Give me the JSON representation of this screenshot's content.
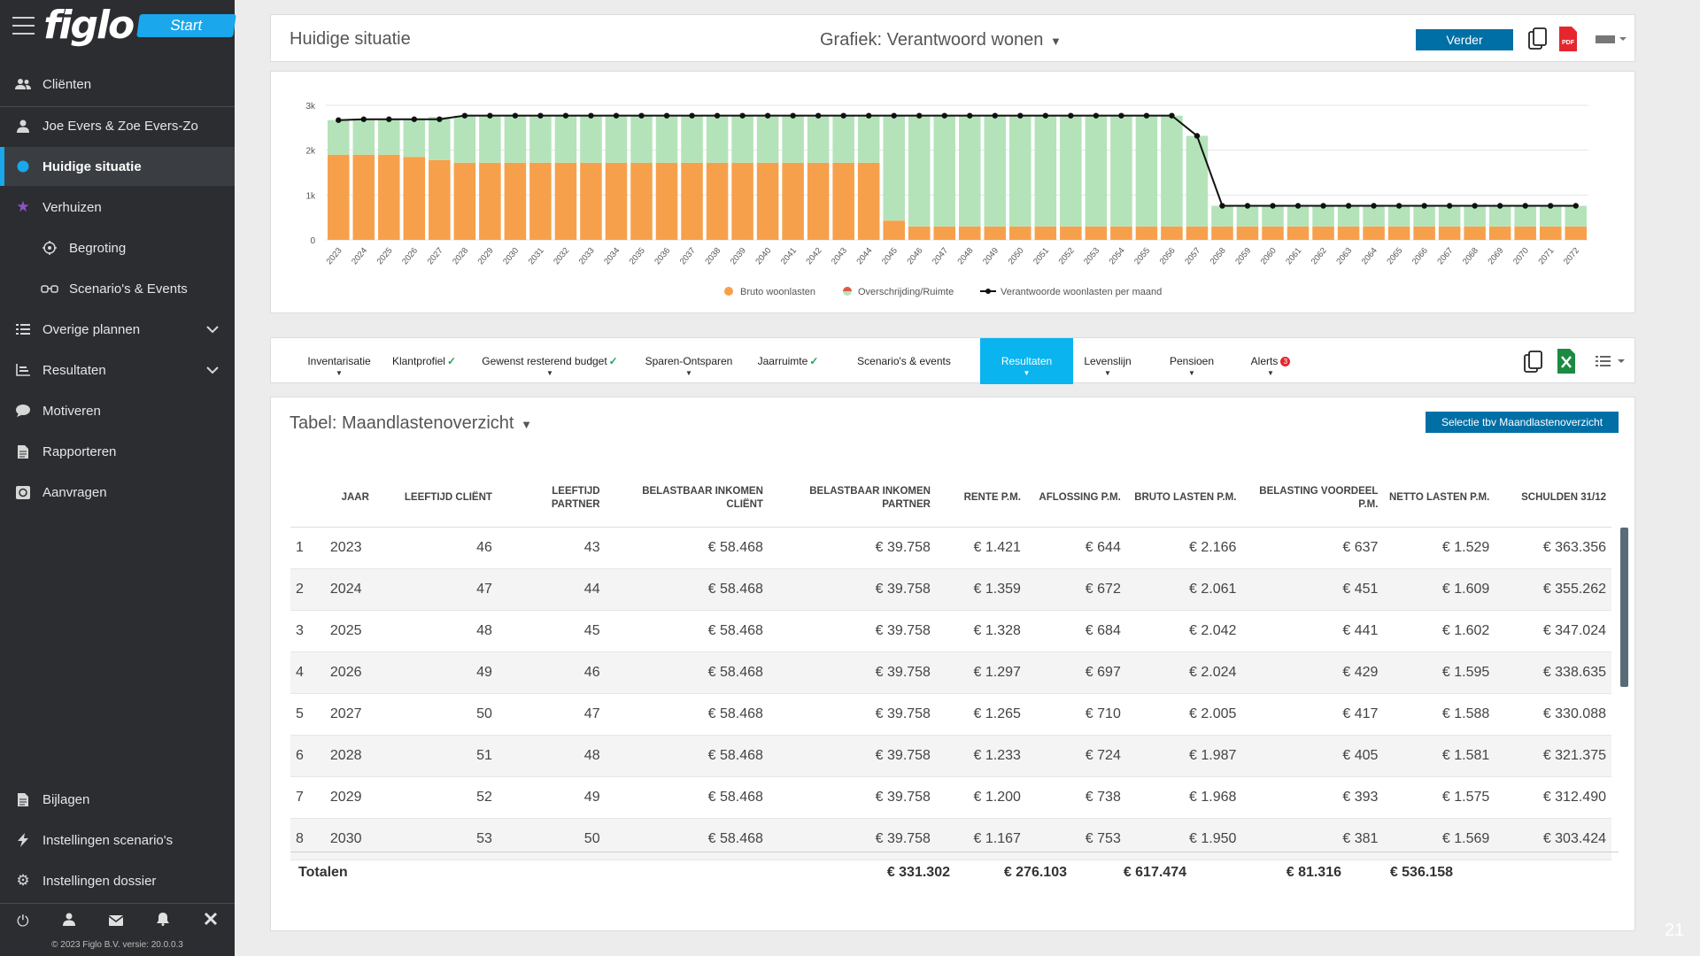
{
  "sidebar": {
    "logo": "figlo",
    "start_label": "Start",
    "items": [
      {
        "label": "Cliënten",
        "icon": "users-icon"
      },
      {
        "label": "Joe Evers & Zoe Evers-Zo",
        "icon": "user-icon"
      },
      {
        "label": "Huidige situatie",
        "icon": "circle-icon"
      },
      {
        "label": "Verhuizen",
        "icon": "star-icon"
      },
      {
        "label": "Begroting",
        "icon": "target-icon"
      },
      {
        "label": "Scenario's & Events",
        "icon": "glasses-icon"
      },
      {
        "label": "Overige plannen",
        "icon": "list-icon"
      },
      {
        "label": "Resultaten",
        "icon": "chart-icon"
      },
      {
        "label": "Motiveren",
        "icon": "chat-icon"
      },
      {
        "label": "Rapporteren",
        "icon": "document-icon"
      },
      {
        "label": "Aanvragen",
        "icon": "money-icon"
      },
      {
        "label": "Bijlagen",
        "icon": "file-icon"
      },
      {
        "label": "Instellingen scenario's",
        "icon": "bolt-icon"
      },
      {
        "label": "Instellingen dossier",
        "icon": "gear-icon"
      }
    ],
    "copyright": "© 2023 Figlo B.V. versie: 20.0.0.3"
  },
  "header": {
    "title": "Huidige situatie",
    "grafiek_label": "Grafiek:",
    "grafiek_value": "Verantwoord wonen",
    "verder_label": "Verder"
  },
  "chart_data": {
    "type": "bar",
    "categories": [
      "2023",
      "2024",
      "2025",
      "2026",
      "2027",
      "2028",
      "2029",
      "2030",
      "2031",
      "2032",
      "2033",
      "2034",
      "2035",
      "2036",
      "2037",
      "2038",
      "2039",
      "2040",
      "2041",
      "2042",
      "2043",
      "2044",
      "2045",
      "2046",
      "2047",
      "2048",
      "2049",
      "2050",
      "2051",
      "2052",
      "2053",
      "2054",
      "2055",
      "2056",
      "2057",
      "2058",
      "2059",
      "2060",
      "2061",
      "2062",
      "2063",
      "2064",
      "2065",
      "2066",
      "2067",
      "2068",
      "2069",
      "2070",
      "2071",
      "2072"
    ],
    "series": [
      {
        "name": "Bruto woonlasten",
        "color": "#f7a04b",
        "values": [
          1900,
          1900,
          1900,
          1850,
          1780,
          1720,
          1720,
          1720,
          1720,
          1720,
          1720,
          1720,
          1720,
          1720,
          1720,
          1720,
          1720,
          1720,
          1720,
          1720,
          1720,
          1720,
          430,
          300,
          300,
          300,
          300,
          300,
          300,
          300,
          300,
          300,
          300,
          300,
          300,
          300,
          300,
          300,
          300,
          300,
          300,
          300,
          300,
          300,
          300,
          300,
          300,
          300,
          300,
          300
        ]
      },
      {
        "name": "Overschrijding/Ruimte",
        "color": "#b4e3b9",
        "values": [
          770,
          790,
          790,
          840,
          960,
          1050,
          1050,
          1050,
          1050,
          1050,
          1050,
          1050,
          1050,
          1050,
          1050,
          1050,
          1050,
          1050,
          1050,
          1050,
          1050,
          1050,
          2340,
          2470,
          2470,
          2470,
          2470,
          2470,
          2470,
          2470,
          2470,
          2470,
          2470,
          2470,
          2020,
          460,
          460,
          460,
          460,
          460,
          460,
          460,
          460,
          460,
          460,
          460,
          460,
          460,
          460,
          460
        ]
      },
      {
        "name": "Verantwoorde woonlasten per maand",
        "color": "#111111",
        "values": [
          2670,
          2690,
          2690,
          2690,
          2690,
          2770,
          2770,
          2770,
          2770,
          2770,
          2770,
          2770,
          2770,
          2770,
          2770,
          2770,
          2770,
          2770,
          2770,
          2770,
          2770,
          2770,
          2770,
          2770,
          2770,
          2770,
          2770,
          2770,
          2770,
          2770,
          2770,
          2770,
          2770,
          2770,
          2320,
          760,
          760,
          760,
          760,
          760,
          760,
          760,
          760,
          760,
          760,
          760,
          760,
          760,
          760,
          760
        ]
      }
    ],
    "ylim": [
      0,
      3000
    ],
    "yticks": [
      "0",
      "1k",
      "2k",
      "3k"
    ],
    "legend_position": "bottom-center",
    "grid": true
  },
  "tabs": [
    {
      "label": "Inventarisatie",
      "check": "",
      "caret": true,
      "badge": ""
    },
    {
      "label": "Klantprofiel",
      "check": "✓",
      "caret": false,
      "badge": ""
    },
    {
      "label": "Gewenst resterend budget",
      "check": "✓",
      "caret": true,
      "badge": ""
    },
    {
      "label": "Sparen-Ontsparen",
      "check": "",
      "caret": true,
      "badge": ""
    },
    {
      "label": "Jaarruimte",
      "check": "✓",
      "caret": false,
      "badge": ""
    },
    {
      "label": "Scenario's & events",
      "check": "",
      "caret": false,
      "badge": ""
    },
    {
      "label": "Resultaten",
      "check": "",
      "caret": true,
      "badge": ""
    },
    {
      "label": "Levenslijn",
      "check": "",
      "caret": true,
      "badge": ""
    },
    {
      "label": "Pensioen",
      "check": "",
      "caret": true,
      "badge": ""
    },
    {
      "label": "Alerts",
      "check": "",
      "caret": true,
      "badge": "3"
    }
  ],
  "table": {
    "title_label": "Tabel:",
    "title_value": "Maandlastenoverzicht",
    "selectie_label": "Selectie tbv Maandlastenoverzicht",
    "headers": [
      "",
      "JAAR",
      "LEEFTIJD CLIËNT",
      "LEEFTIJD PARTNER",
      "BELASTBAAR INKOMEN CLIËNT",
      "BELASTBAAR INKOMEN PARTNER",
      "RENTE P.M.",
      "AFLOSSING P.M.",
      "BRUTO LASTEN P.M.",
      "BELASTING VOORDEEL P.M.",
      "NETTO LASTEN P.M.",
      "SCHULDEN 31/12"
    ],
    "rows": [
      [
        "1",
        "2023",
        "46",
        "43",
        "€ 58.468",
        "€ 39.758",
        "€ 1.421",
        "€ 644",
        "€ 2.166",
        "€ 637",
        "€ 1.529",
        "€ 363.356"
      ],
      [
        "2",
        "2024",
        "47",
        "44",
        "€ 58.468",
        "€ 39.758",
        "€ 1.359",
        "€ 672",
        "€ 2.061",
        "€ 451",
        "€ 1.609",
        "€ 355.262"
      ],
      [
        "3",
        "2025",
        "48",
        "45",
        "€ 58.468",
        "€ 39.758",
        "€ 1.328",
        "€ 684",
        "€ 2.042",
        "€ 441",
        "€ 1.602",
        "€ 347.024"
      ],
      [
        "4",
        "2026",
        "49",
        "46",
        "€ 58.468",
        "€ 39.758",
        "€ 1.297",
        "€ 697",
        "€ 2.024",
        "€ 429",
        "€ 1.595",
        "€ 338.635"
      ],
      [
        "5",
        "2027",
        "50",
        "47",
        "€ 58.468",
        "€ 39.758",
        "€ 1.265",
        "€ 710",
        "€ 2.005",
        "€ 417",
        "€ 1.588",
        "€ 330.088"
      ],
      [
        "6",
        "2028",
        "51",
        "48",
        "€ 58.468",
        "€ 39.758",
        "€ 1.233",
        "€ 724",
        "€ 1.987",
        "€ 405",
        "€ 1.581",
        "€ 321.375"
      ],
      [
        "7",
        "2029",
        "52",
        "49",
        "€ 58.468",
        "€ 39.758",
        "€ 1.200",
        "€ 738",
        "€ 1.968",
        "€ 393",
        "€ 1.575",
        "€ 312.490"
      ],
      [
        "8",
        "2030",
        "53",
        "50",
        "€ 58.468",
        "€ 39.758",
        "€ 1.167",
        "€ 753",
        "€ 1.950",
        "€ 381",
        "€ 1.569",
        "€ 303.424"
      ]
    ],
    "totals_label": "Totalen",
    "totals": [
      "€ 331.302",
      "€ 276.103",
      "€ 617.474",
      "€ 81.316",
      "€ 536.158"
    ]
  },
  "page_number": "21"
}
